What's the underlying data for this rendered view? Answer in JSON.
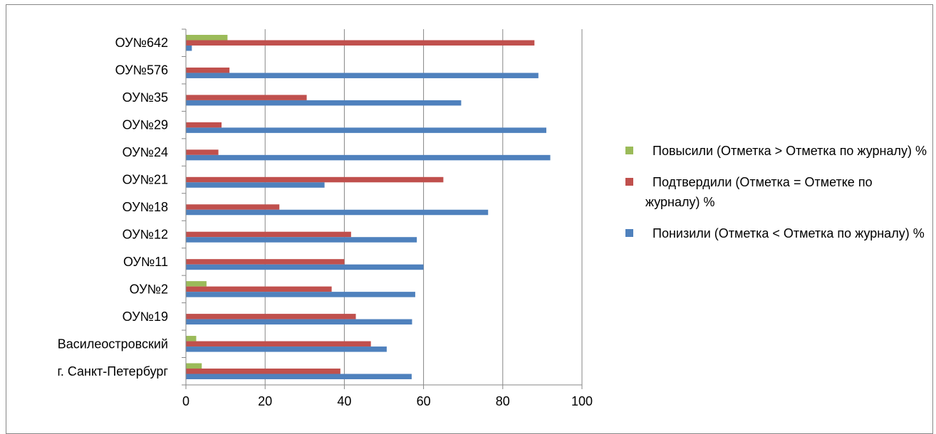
{
  "chart_data": {
    "type": "bar",
    "orientation": "horizontal",
    "categories": [
      "ОУ№642",
      "ОУ№576",
      "ОУ№35",
      "ОУ№29",
      "ОУ№24",
      "ОУ№21",
      "ОУ№18",
      "ОУ№12",
      "ОУ№11",
      "ОУ№2",
      "ОУ№19",
      "Василеостровский",
      "г. Санкт-Петербург"
    ],
    "series": [
      {
        "name": "Повысили (Отметка > Отметка по журналу) %",
        "color": "#9BBB59",
        "values": [
          10.5,
          0,
          0,
          0,
          0,
          0,
          0,
          0,
          0,
          5.2,
          0,
          2.6,
          4
        ]
      },
      {
        "name": "Подтвердили (Отметка = Отметке по журналу) %",
        "color": "#C0504D",
        "values": [
          88,
          11,
          30.5,
          9,
          8.2,
          65,
          23.6,
          41.7,
          40,
          36.8,
          42.9,
          46.7,
          39
        ]
      },
      {
        "name": "Понизили (Отметка < Отметка по журналу) %",
        "color": "#4F81BD",
        "values": [
          1.5,
          89,
          69.5,
          91,
          92,
          35,
          76.3,
          58.3,
          60,
          57.9,
          57.1,
          50.7,
          57
        ]
      }
    ],
    "x_ticks": [
      "0",
      "20",
      "40",
      "60",
      "80",
      "100"
    ],
    "xlim": [
      0,
      100
    ],
    "grid": "vertical major gridlines",
    "legend_position": "right",
    "title": "",
    "xlabel": "",
    "ylabel": ""
  }
}
